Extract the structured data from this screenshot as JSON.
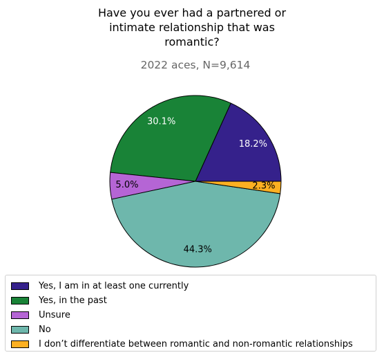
{
  "chart_data": {
    "type": "pie",
    "title_lines": [
      "Have you ever had a partnered or",
      "intimate relationship that was",
      "romantic?"
    ],
    "subtitle": "2022 aces, N=9,614",
    "slices": [
      {
        "label": "Yes, I am in at least one currently",
        "value": 18.2,
        "pct_label": "18.2%",
        "color": "#35218b",
        "text_color": "#ffffff"
      },
      {
        "label": "Yes, in the past",
        "value": 30.1,
        "pct_label": "30.1%",
        "color": "#198337",
        "text_color": "#ffffff"
      },
      {
        "label": "Unsure",
        "value": 5.0,
        "pct_label": "5.0%",
        "color": "#b565d5",
        "text_color": "#000000"
      },
      {
        "label": "No",
        "value": 44.3,
        "pct_label": "44.3%",
        "color": "#6eb7ac",
        "text_color": "#000000"
      },
      {
        "label": "I don’t differentiate between romantic and non-romantic relationships",
        "value": 2.3,
        "pct_label": "2.3%",
        "color": "#fdb022",
        "text_color": "#000000"
      }
    ],
    "start_angle": 0,
    "direction": "counterclockwise",
    "legend_position": "bottom-left"
  }
}
